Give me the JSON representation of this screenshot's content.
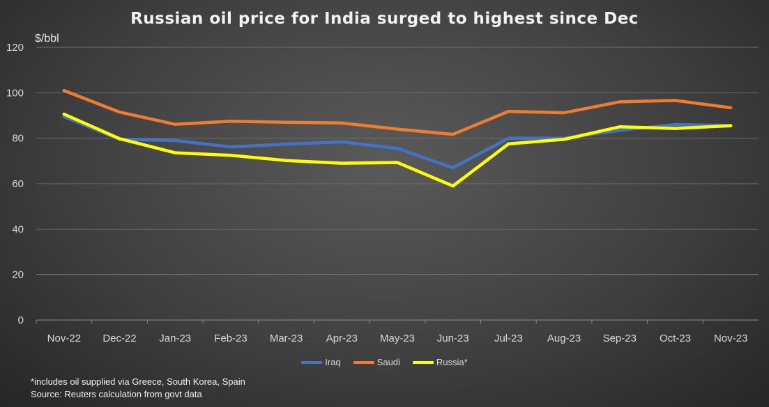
{
  "title": "Russian oil price for India surged to highest since Dec",
  "unit_label": "$/bbl",
  "footnote": "*includes oil supplied via Greece, South Korea, Spain",
  "source": "Source: Reuters calculation from govt data",
  "chart_data": {
    "type": "line",
    "title": "Russian oil price for India surged to highest since Dec",
    "ylabel": "$/bbl",
    "xlabel": "",
    "categories": [
      "Nov-22",
      "Dec-22",
      "Jan-23",
      "Feb-23",
      "Mar-23",
      "Apr-23",
      "May-23",
      "Jun-23",
      "Jul-23",
      "Aug-23",
      "Sep-23",
      "Oct-23",
      "Nov-23"
    ],
    "ylim": [
      0,
      120
    ],
    "yticks": [
      0,
      20,
      40,
      60,
      80,
      100,
      120
    ],
    "grid": true,
    "legend_position": "bottom",
    "series": [
      {
        "name": "Iraq",
        "color": "#4472c4",
        "values": [
          89.5,
          79.5,
          79.0,
          76.2,
          77.4,
          78.4,
          75.5,
          67.0,
          80.0,
          80.0,
          83.5,
          86.0,
          85.6
        ]
      },
      {
        "name": "Saudi",
        "color": "#ed7d31",
        "values": [
          101.0,
          91.5,
          86.1,
          87.5,
          87.0,
          86.7,
          84.0,
          81.7,
          91.8,
          91.2,
          96.0,
          96.6,
          93.4
        ]
      },
      {
        "name": "Russia*",
        "color": "#ffff00",
        "values": [
          90.6,
          79.8,
          73.6,
          72.5,
          70.2,
          69.0,
          69.3,
          59.0,
          77.5,
          79.5,
          85.0,
          84.3,
          85.5
        ]
      }
    ]
  }
}
